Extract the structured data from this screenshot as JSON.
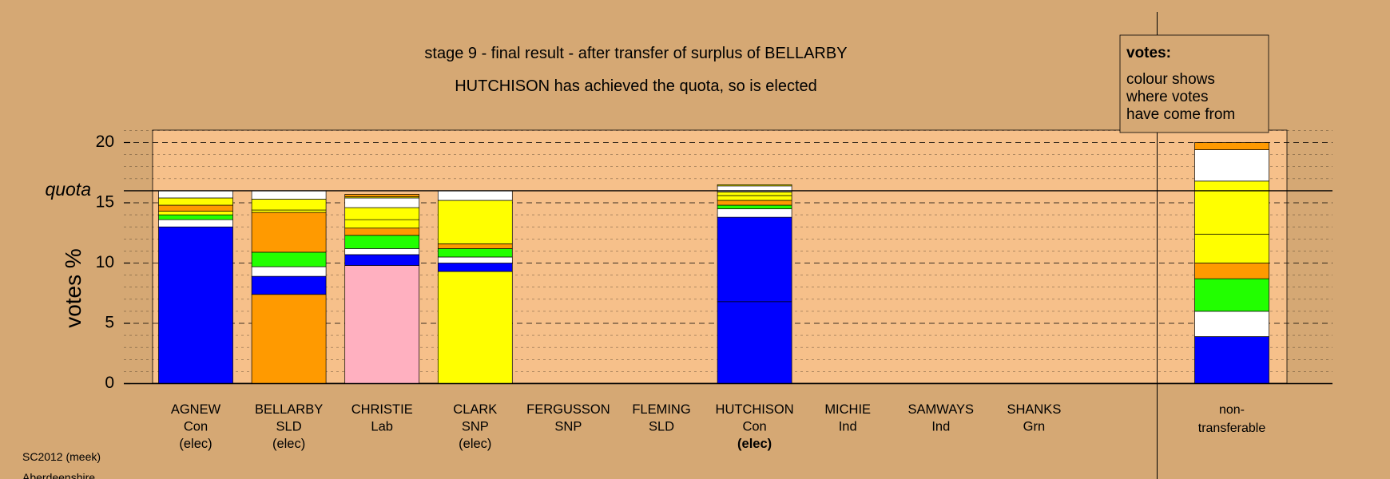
{
  "chart_data": {
    "type": "bar",
    "title": "stage 9 - final result - after transfer of surplus of BELLARBY",
    "subtitle": "HUTCHISON has achieved the quota, so is elected",
    "ylabel": "votes %",
    "quota_label": "quota",
    "quota": 16,
    "ylim": [
      0,
      21
    ],
    "yticks": [
      0,
      5,
      10,
      15,
      20
    ],
    "stacked": true,
    "legend": {
      "title": "votes:",
      "lines": [
        "colour shows",
        "where votes",
        "have come from"
      ],
      "placement": "top-right"
    },
    "categories": [
      {
        "name": "AGNEW",
        "party": "Con",
        "status": "(elec)",
        "bold": false,
        "segments": [
          {
            "color": "#0000ff",
            "value": 13.0
          },
          {
            "color": "#ffffff",
            "value": 0.6
          },
          {
            "color": "#22ff00",
            "value": 0.4
          },
          {
            "color": "#ffff00",
            "value": 0.3
          },
          {
            "color": "#ff9a00",
            "value": 0.5
          },
          {
            "color": "#ffff00",
            "value": 0.6
          },
          {
            "color": "#ffffff",
            "value": 0.6
          }
        ]
      },
      {
        "name": "BELLARBY",
        "party": "SLD",
        "status": "(elec)",
        "bold": false,
        "segments": [
          {
            "color": "#ff9a00",
            "value": 7.4
          },
          {
            "color": "#0000ff",
            "value": 1.5
          },
          {
            "color": "#ffffff",
            "value": 0.8
          },
          {
            "color": "#22ff00",
            "value": 1.2
          },
          {
            "color": "#ff9a00",
            "value": 3.3
          },
          {
            "color": "#ffff00",
            "value": 0.2
          },
          {
            "color": "#ffff00",
            "value": 0.9
          },
          {
            "color": "#ffffff",
            "value": 0.7
          }
        ]
      },
      {
        "name": "CHRISTIE",
        "party": "Lab",
        "status": "",
        "bold": false,
        "segments": [
          {
            "color": "#ffb0c0",
            "value": 9.8
          },
          {
            "color": "#0000ff",
            "value": 0.9
          },
          {
            "color": "#ffffff",
            "value": 0.5
          },
          {
            "color": "#22ff00",
            "value": 1.1
          },
          {
            "color": "#ff9a00",
            "value": 0.6
          },
          {
            "color": "#ffff00",
            "value": 0.7
          },
          {
            "color": "#ffff00",
            "value": 1.0
          },
          {
            "color": "#ffffff",
            "value": 0.8
          },
          {
            "color": "#ffff00",
            "value": 0.1
          },
          {
            "color": "#ff9a00",
            "value": 0.2
          }
        ]
      },
      {
        "name": "CLARK",
        "party": "SNP",
        "status": "(elec)",
        "bold": false,
        "segments": [
          {
            "color": "#ffff00",
            "value": 9.3
          },
          {
            "color": "#0000ff",
            "value": 0.7
          },
          {
            "color": "#ffffff",
            "value": 0.5
          },
          {
            "color": "#22ff00",
            "value": 0.7
          },
          {
            "color": "#ff9a00",
            "value": 0.4
          },
          {
            "color": "#ffff00",
            "value": 3.6
          },
          {
            "color": "#ffffff",
            "value": 0.8
          }
        ]
      },
      {
        "name": "FERGUSSON",
        "party": "SNP",
        "status": "",
        "bold": false,
        "segments": []
      },
      {
        "name": "FLEMING",
        "party": "SLD",
        "status": "",
        "bold": false,
        "segments": []
      },
      {
        "name": "HUTCHISON",
        "party": "Con",
        "status": "(elec)",
        "bold": true,
        "segments": [
          {
            "color": "#0000ff",
            "value": 6.8
          },
          {
            "color": "#0000ff",
            "value": 7.0
          },
          {
            "color": "#ffffff",
            "value": 0.7
          },
          {
            "color": "#22ff00",
            "value": 0.3
          },
          {
            "color": "#ff9a00",
            "value": 0.4
          },
          {
            "color": "#ffff00",
            "value": 0.4
          },
          {
            "color": "#ffff00",
            "value": 0.3
          },
          {
            "color": "#ffffff",
            "value": 0.5
          },
          {
            "color": "#ffff00",
            "value": 0.1
          }
        ]
      },
      {
        "name": "MICHIE",
        "party": "Ind",
        "status": "",
        "bold": false,
        "segments": []
      },
      {
        "name": "SAMWAYS",
        "party": "Ind",
        "status": "",
        "bold": false,
        "segments": []
      },
      {
        "name": "SHANKS",
        "party": "Grn",
        "status": "",
        "bold": false,
        "segments": []
      }
    ],
    "nontransferable": {
      "label_lines": [
        "non-",
        "transferable"
      ],
      "segments": [
        {
          "color": "#0000ff",
          "value": 3.9
        },
        {
          "color": "#ffffff",
          "value": 2.1
        },
        {
          "color": "#22ff00",
          "value": 2.7
        },
        {
          "color": "#ff9a00",
          "value": 1.3
        },
        {
          "color": "#ffff00",
          "value": 2.4
        },
        {
          "color": "#ffff00",
          "value": 4.4
        },
        {
          "color": "#ffffff",
          "value": 2.6
        },
        {
          "color": "#ff9a00",
          "value": 0.6
        }
      ]
    }
  },
  "footer": {
    "source": "SC2012 (meek)",
    "area": "Aberdeenshire"
  },
  "colors": {
    "page_background": "#d5a874",
    "plot_background": "#f6c08a",
    "grid": "#000000"
  }
}
